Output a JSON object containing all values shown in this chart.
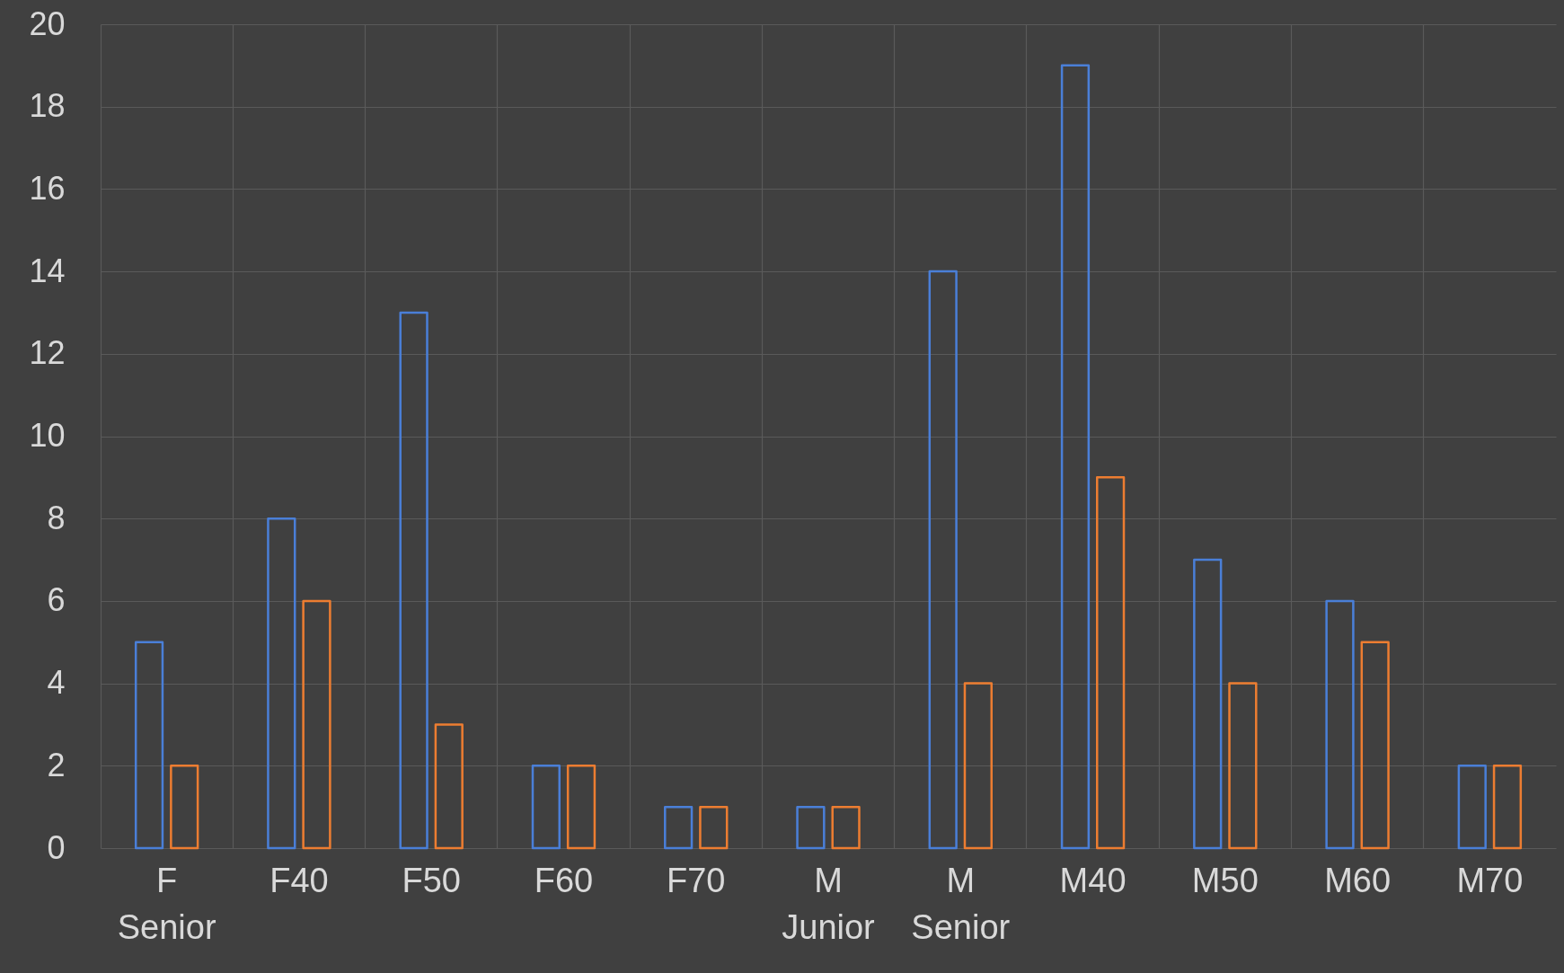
{
  "chart_data": {
    "type": "bar",
    "categories": [
      "F Senior",
      "F40",
      "F50",
      "F60",
      "F70",
      "M Junior",
      "M Senior",
      "M40",
      "M50",
      "M60",
      "M70"
    ],
    "series": [
      {
        "color": "#4a7fd8",
        "values": [
          5,
          8,
          13,
          2,
          1,
          1,
          14,
          19,
          7,
          6,
          2
        ]
      },
      {
        "color": "#ed7d31",
        "values": [
          2,
          6,
          3,
          2,
          1,
          1,
          4,
          9,
          4,
          5,
          2
        ]
      }
    ],
    "ylim": [
      0,
      20
    ],
    "yticks": [
      0,
      2,
      4,
      6,
      8,
      10,
      12,
      14,
      16,
      18,
      20
    ],
    "grid": true
  }
}
